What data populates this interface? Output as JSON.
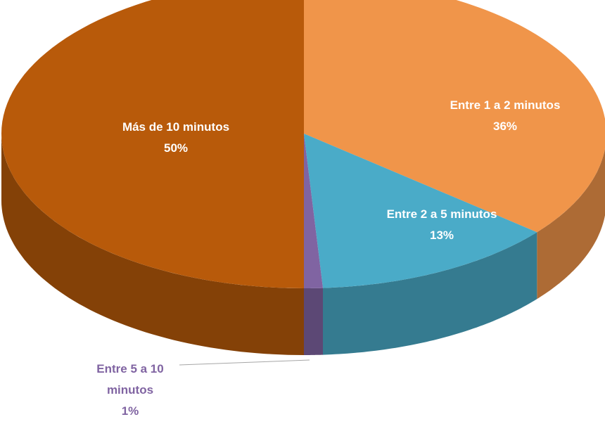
{
  "chart_data": {
    "type": "pie",
    "categories": [
      "Entre 1 a 2 minutos",
      "Entre 2 a 5 minutos",
      "Entre 5 a 10 minutos",
      "Más de 10 minutos"
    ],
    "values": [
      36,
      13,
      1,
      50
    ],
    "value_labels": [
      "36%",
      "13%",
      "1%",
      "50%"
    ],
    "colors": [
      "#f0954a",
      "#4aabc8",
      "#8064a2",
      "#b85a0a"
    ]
  }
}
